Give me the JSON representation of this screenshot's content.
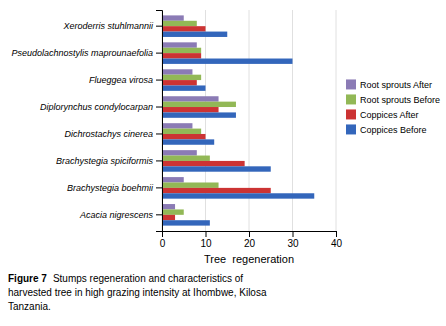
{
  "chart_data": {
    "type": "bar",
    "orientation": "horizontal",
    "categories": [
      "Acacia nigrescens",
      "Brachystegia boehmii",
      "Brachystegia spiciformis",
      "Dichrostachys cinerea",
      "Diplorynchus condylocarpan",
      "Flueggea virosa",
      "Pseudolachnostylis maprounaefolia",
      "Xeroderris stuhlmannii"
    ],
    "series": [
      {
        "name": "Root sprouts After",
        "color": "#8B7BB5",
        "values": [
          3,
          5,
          8,
          7,
          13,
          7,
          8,
          5
        ]
      },
      {
        "name": "Root sprouts Before",
        "color": "#92B856",
        "values": [
          5,
          13,
          11,
          9,
          17,
          9,
          9,
          8
        ]
      },
      {
        "name": "Coppices After",
        "color": "#CC3333",
        "values": [
          3,
          25,
          19,
          10,
          13,
          8,
          9,
          10
        ]
      },
      {
        "name": "Coppices Before",
        "color": "#3366BB",
        "values": [
          11,
          35,
          25,
          12,
          17,
          10,
          30,
          15
        ]
      }
    ],
    "x_label": "Tree  regeneration",
    "xlim": [
      0,
      40
    ],
    "xticks": [
      0,
      10,
      20,
      30,
      40
    ],
    "grid": true,
    "legend": "right",
    "annotations": [
      "Figure 7",
      "Stumps regeneration and characteristics of",
      "harvested tree in high grazing intensity at Ihombwe, Kilosa",
      "Tanzania."
    ]
  }
}
